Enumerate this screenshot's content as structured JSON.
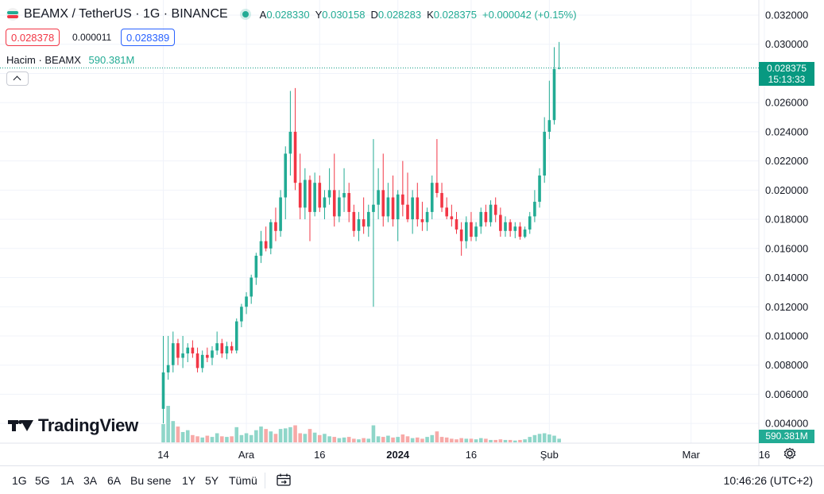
{
  "header": {
    "symbol": "BEAMX / TetherUS · 1G · BINANCE",
    "open_label": "A",
    "open_value": "0.028330",
    "high_label": "Y",
    "high_value": "0.030158",
    "low_label": "D",
    "low_value": "0.028283",
    "close_label": "K",
    "close_value": "0.028375",
    "change": "+0.000042 (+0.15%)"
  },
  "trade": {
    "sell_price": "0.028378",
    "spread": "0.000011",
    "buy_price": "0.028389"
  },
  "volume_legend": {
    "label": "Hacim · BEAMX",
    "value": "590.381M"
  },
  "price_tag": {
    "price": "0.028375",
    "countdown": "15:13:33"
  },
  "volume_tag": "590.381M",
  "watermark": "TradingView",
  "x_axis_labels": [
    {
      "text": "14",
      "x_index": 0
    },
    {
      "text": "Ara",
      "x_index": 17
    },
    {
      "text": "16",
      "x_index": 32
    },
    {
      "text": "2024",
      "x_index": 48,
      "bold": true
    },
    {
      "text": "16",
      "x_index": 63
    },
    {
      "text": "Şub",
      "x_index": 79
    },
    {
      "text": "Mar",
      "x_index": 108
    },
    {
      "text": "16",
      "x_index": 123
    }
  ],
  "timeframes": [
    "1G",
    "5G",
    "1A",
    "3A",
    "6A",
    "Bu sene",
    "1Y",
    "5Y",
    "Tümü"
  ],
  "clock": "10:46:26 (UTC+2)",
  "colors": {
    "up": "#22ab94",
    "down": "#f23645",
    "grid": "#f0f3fa",
    "up_vol": "#8fd6c9",
    "down_vol": "#f7a9a7",
    "last_line": "#089981"
  },
  "chart_data": {
    "type": "candlestick",
    "yaxis_ticks": [
      "0.004000",
      "0.006000",
      "0.008000",
      "0.010000",
      "0.012000",
      "0.014000",
      "0.016000",
      "0.018000",
      "0.020000",
      "0.022000",
      "0.024000",
      "0.026000",
      "0.028000",
      "0.030000",
      "0.032000"
    ],
    "ylim": [
      0.0033,
      0.0326
    ],
    "last_price": 0.028375,
    "candles": [
      [
        0.005,
        0.01,
        0.004,
        0.0075
      ],
      [
        0.0075,
        0.01,
        0.007,
        0.008
      ],
      [
        0.008,
        0.0103,
        0.0075,
        0.0095
      ],
      [
        0.0095,
        0.0098,
        0.008,
        0.0085
      ],
      [
        0.0085,
        0.01,
        0.0078,
        0.0088
      ],
      [
        0.0088,
        0.0095,
        0.0082,
        0.0092
      ],
      [
        0.0092,
        0.0097,
        0.0085,
        0.0088
      ],
      [
        0.0088,
        0.0092,
        0.0075,
        0.0078
      ],
      [
        0.0078,
        0.009,
        0.0075,
        0.0087
      ],
      [
        0.0087,
        0.0092,
        0.0082,
        0.0085
      ],
      [
        0.0085,
        0.0093,
        0.008,
        0.009
      ],
      [
        0.009,
        0.0103,
        0.0087,
        0.0095
      ],
      [
        0.0095,
        0.0098,
        0.0085,
        0.0088
      ],
      [
        0.0088,
        0.0096,
        0.0084,
        0.0093
      ],
      [
        0.0093,
        0.0096,
        0.0088,
        0.009
      ],
      [
        0.009,
        0.0112,
        0.0088,
        0.011
      ],
      [
        0.011,
        0.0122,
        0.0106,
        0.012
      ],
      [
        0.012,
        0.013,
        0.0115,
        0.0127
      ],
      [
        0.0127,
        0.0142,
        0.0122,
        0.014
      ],
      [
        0.014,
        0.0157,
        0.0135,
        0.0155
      ],
      [
        0.0155,
        0.0172,
        0.015,
        0.0165
      ],
      [
        0.0165,
        0.0175,
        0.0158,
        0.016
      ],
      [
        0.016,
        0.018,
        0.0156,
        0.0178
      ],
      [
        0.0178,
        0.0188,
        0.0165,
        0.0172
      ],
      [
        0.0172,
        0.02,
        0.0168,
        0.0195
      ],
      [
        0.0195,
        0.023,
        0.018,
        0.0225
      ],
      [
        0.0225,
        0.0268,
        0.021,
        0.024
      ],
      [
        0.024,
        0.027,
        0.02,
        0.0205
      ],
      [
        0.0205,
        0.0225,
        0.018,
        0.0188
      ],
      [
        0.0188,
        0.0215,
        0.018,
        0.0207
      ],
      [
        0.0207,
        0.021,
        0.0165,
        0.0185
      ],
      [
        0.0185,
        0.0212,
        0.0182,
        0.0205
      ],
      [
        0.0205,
        0.021,
        0.0185,
        0.0188
      ],
      [
        0.0188,
        0.02,
        0.018,
        0.0195
      ],
      [
        0.0195,
        0.0215,
        0.019,
        0.02
      ],
      [
        0.02,
        0.0225,
        0.0175,
        0.0182
      ],
      [
        0.0182,
        0.02,
        0.0178,
        0.0195
      ],
      [
        0.0195,
        0.0215,
        0.0185,
        0.0198
      ],
      [
        0.0198,
        0.0205,
        0.0178,
        0.0185
      ],
      [
        0.0185,
        0.019,
        0.0168,
        0.0172
      ],
      [
        0.0172,
        0.0185,
        0.0165,
        0.018
      ],
      [
        0.018,
        0.0195,
        0.017,
        0.0175
      ],
      [
        0.0175,
        0.019,
        0.0168,
        0.0185
      ],
      [
        0.0185,
        0.0235,
        0.012,
        0.019
      ],
      [
        0.019,
        0.0215,
        0.018,
        0.02
      ],
      [
        0.02,
        0.0225,
        0.0175,
        0.0182
      ],
      [
        0.0182,
        0.0205,
        0.0178,
        0.0195
      ],
      [
        0.0195,
        0.021,
        0.0175,
        0.018
      ],
      [
        0.018,
        0.02,
        0.0165,
        0.0197
      ],
      [
        0.0197,
        0.022,
        0.0182,
        0.019
      ],
      [
        0.019,
        0.0212,
        0.0178,
        0.018
      ],
      [
        0.018,
        0.02,
        0.017,
        0.0195
      ],
      [
        0.0195,
        0.0205,
        0.0175,
        0.018
      ],
      [
        0.018,
        0.0192,
        0.0172,
        0.0178
      ],
      [
        0.0178,
        0.0188,
        0.0172,
        0.0185
      ],
      [
        0.0185,
        0.021,
        0.018,
        0.0205
      ],
      [
        0.0205,
        0.0235,
        0.0195,
        0.0198
      ],
      [
        0.0198,
        0.0205,
        0.0185,
        0.0188
      ],
      [
        0.0188,
        0.0195,
        0.018,
        0.0182
      ],
      [
        0.0182,
        0.019,
        0.0175,
        0.018
      ],
      [
        0.018,
        0.0185,
        0.017,
        0.0173
      ],
      [
        0.0173,
        0.0178,
        0.0155,
        0.0165
      ],
      [
        0.0165,
        0.0182,
        0.016,
        0.0178
      ],
      [
        0.0178,
        0.0185,
        0.0165,
        0.0168
      ],
      [
        0.0168,
        0.0178,
        0.0165,
        0.0175
      ],
      [
        0.0175,
        0.0188,
        0.017,
        0.0185
      ],
      [
        0.0185,
        0.019,
        0.0175,
        0.0178
      ],
      [
        0.0178,
        0.0193,
        0.0175,
        0.019
      ],
      [
        0.019,
        0.0195,
        0.0178,
        0.0183
      ],
      [
        0.0183,
        0.0188,
        0.0168,
        0.0172
      ],
      [
        0.0172,
        0.0182,
        0.0168,
        0.0178
      ],
      [
        0.0178,
        0.018,
        0.0168,
        0.0172
      ],
      [
        0.0172,
        0.0178,
        0.0167,
        0.0175
      ],
      [
        0.0175,
        0.0178,
        0.0166,
        0.0168
      ],
      [
        0.0168,
        0.0175,
        0.0167,
        0.0173
      ],
      [
        0.0173,
        0.0185,
        0.017,
        0.0182
      ],
      [
        0.0182,
        0.02,
        0.0178,
        0.0192
      ],
      [
        0.0192,
        0.0215,
        0.0188,
        0.021
      ],
      [
        0.021,
        0.025,
        0.0205,
        0.024
      ],
      [
        0.024,
        0.0275,
        0.0235,
        0.0248
      ],
      [
        0.0248,
        0.0298,
        0.0245,
        0.0283
      ],
      [
        0.02833,
        0.030158,
        0.028283,
        0.028375
      ]
    ],
    "volume_relative": [
      30,
      60,
      35,
      26,
      17,
      20,
      12,
      10,
      8,
      11,
      9,
      15,
      10,
      9,
      10,
      25,
      12,
      15,
      12,
      20,
      26,
      22,
      18,
      14,
      22,
      23,
      25,
      28,
      15,
      14,
      22,
      16,
      12,
      14,
      10,
      9,
      7,
      8,
      9,
      6,
      5,
      7,
      6,
      28,
      10,
      9,
      11,
      8,
      9,
      13,
      10,
      7,
      8,
      6,
      9,
      12,
      18,
      9,
      8,
      6,
      5,
      7,
      6,
      6,
      5,
      7,
      6,
      4,
      4,
      5,
      4,
      4,
      3,
      4,
      5,
      9,
      12,
      14,
      15,
      13,
      11,
      6
    ]
  }
}
